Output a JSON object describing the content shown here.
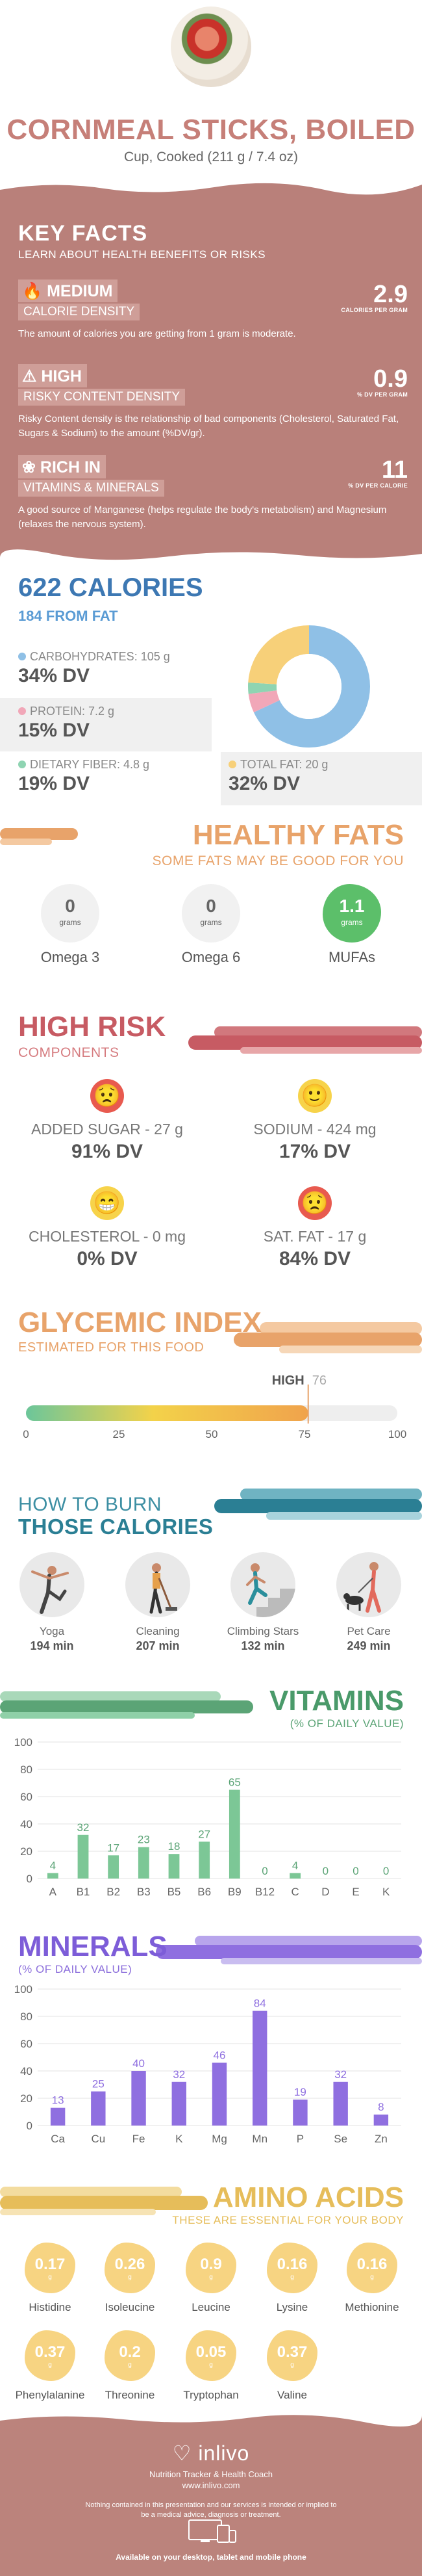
{
  "food": {
    "title": "CORNMEAL STICKS, BOILED",
    "serving": "Cup, Cooked (211 g / 7.4 oz)"
  },
  "key_facts": {
    "title": "KEY FACTS",
    "subtitle": "LEARN ABOUT HEALTH BENEFITS OR RISKS",
    "items": [
      {
        "level": "MEDIUM",
        "label": "CALORIE DENSITY",
        "icon": "flame-icon",
        "value": "2.9",
        "unit": "CALORIES PER GRAM",
        "description": "The amount of calories you are getting from 1 gram is moderate."
      },
      {
        "level": "HIGH",
        "label": "RISKY CONTENT DENSITY",
        "icon": "warning-icon",
        "value": "0.9",
        "unit": "% DV PER GRAM",
        "description": "Risky Content density is the relationship of bad components (Cholesterol, Saturated Fat, Sugars & Sodium) to the amount (%DV/gr)."
      },
      {
        "level": "RICH IN",
        "label": "VITAMINS & MINERALS",
        "icon": "leaf-icon",
        "value": "11",
        "unit": "% DV PER CALORIE",
        "description": "A good source of Manganese (helps regulate the body's metabolism) and Magnesium (relaxes the nervous system)."
      }
    ]
  },
  "calories": {
    "title": "622 CALORIES",
    "from_fat": "184 FROM FAT",
    "macros": [
      {
        "name": "CARBOHYDRATES: 105 g",
        "dv": "34% DV",
        "color": "#8fc0e6"
      },
      {
        "name": "PROTEIN: 7.2 g",
        "dv": "15% DV",
        "color": "#f1a7b8"
      },
      {
        "name": "DIETARY FIBER: 4.8 g",
        "dv": "19% DV",
        "color": "#8fd4b2"
      },
      {
        "name": "TOTAL FAT: 20 g",
        "dv": "32% DV",
        "color": "#f7d079"
      }
    ],
    "donut_data": {
      "type": "pie",
      "slices": [
        {
          "name": "carbohydrates",
          "value": 68,
          "color": "#8fc0e6"
        },
        {
          "name": "protein",
          "value": 5,
          "color": "#f1a7b8"
        },
        {
          "name": "fiber",
          "value": 3,
          "color": "#8fd4b2"
        },
        {
          "name": "fat",
          "value": 24,
          "color": "#f7d079"
        }
      ]
    }
  },
  "healthy_fats": {
    "title": "HEALTHY FATS",
    "subtitle": "SOME FATS MAY BE GOOD FOR YOU",
    "items": [
      {
        "value": "0",
        "unit": "grams",
        "name": "Omega 3",
        "highlight": false
      },
      {
        "value": "0",
        "unit": "grams",
        "name": "Omega 6",
        "highlight": false
      },
      {
        "value": "1.1",
        "unit": "grams",
        "name": "MUFAs",
        "highlight": true
      }
    ]
  },
  "high_risk": {
    "title": "HIGH RISK",
    "subtitle": "COMPONENTS",
    "items": [
      {
        "label": "ADDED SUGAR - 27 g",
        "dv": "91% DV",
        "mood": "sad-face-icon",
        "color": "#e85a4f"
      },
      {
        "label": "SODIUM - 424 mg",
        "dv": "17% DV",
        "mood": "smile-face-icon",
        "color": "#f7d34a"
      },
      {
        "label": "CHOLESTEROL - 0 mg",
        "dv": "0% DV",
        "mood": "happy-face-icon",
        "color": "#f7d34a"
      },
      {
        "label": "SAT. FAT - 17 g",
        "dv": "84% DV",
        "mood": "sad-face-icon",
        "color": "#e85a4f"
      }
    ]
  },
  "glycemic": {
    "title": "GLYCEMIC INDEX",
    "subtitle": "ESTIMATED FOR THIS FOOD",
    "level": "HIGH",
    "value": "76",
    "ticks": [
      "0",
      "25",
      "50",
      "75",
      "100"
    ],
    "fill_fraction": 0.76
  },
  "burn": {
    "title1": "HOW TO BURN",
    "title2": "THOSE CALORIES",
    "activities": [
      {
        "name": "Yoga",
        "minutes": "194 min",
        "icon": "yoga-icon"
      },
      {
        "name": "Cleaning",
        "minutes": "207 min",
        "icon": "cleaning-icon"
      },
      {
        "name": "Climbing Stars",
        "minutes": "132 min",
        "icon": "stairs-icon"
      },
      {
        "name": "Pet Care",
        "minutes": "249 min",
        "icon": "dog-walk-icon"
      }
    ]
  },
  "vitamins": {
    "title": "VITAMINS",
    "subtitle": "(% OF DAILY VALUE)",
    "chart_data": {
      "type": "bar",
      "categories": [
        "A",
        "B1",
        "B2",
        "B3",
        "B5",
        "B6",
        "B9",
        "B12",
        "C",
        "D",
        "E",
        "K"
      ],
      "values": [
        4,
        32,
        17,
        23,
        18,
        27,
        65,
        0,
        4,
        0,
        0,
        0
      ],
      "ylim": [
        0,
        100
      ],
      "yticks": [
        0,
        20,
        40,
        60,
        80,
        100
      ],
      "bar_color": "#7cc796",
      "label_color": "#5ba476"
    }
  },
  "minerals": {
    "title": "MINERALS",
    "subtitle": "(% OF DAILY VALUE)",
    "chart_data": {
      "type": "bar",
      "categories": [
        "Ca",
        "Cu",
        "Fe",
        "K",
        "Mg",
        "Mn",
        "P",
        "Se",
        "Zn"
      ],
      "values": [
        13,
        25,
        40,
        32,
        46,
        84,
        19,
        32,
        8
      ],
      "ylim": [
        0,
        100
      ],
      "yticks": [
        0,
        20,
        40,
        60,
        80,
        100
      ],
      "bar_color": "#8f6fe0",
      "label_color": "#8f6fe0"
    }
  },
  "amino": {
    "title": "AMINO ACIDS",
    "subtitle": "THESE ARE ESSENTIAL FOR YOUR BODY",
    "items": [
      {
        "value": "0.17",
        "unit": "g",
        "name": "Histidine"
      },
      {
        "value": "0.26",
        "unit": "g",
        "name": "Isoleucine"
      },
      {
        "value": "0.9",
        "unit": "g",
        "name": "Leucine"
      },
      {
        "value": "0.16",
        "unit": "g",
        "name": "Lysine"
      },
      {
        "value": "0.16",
        "unit": "g",
        "name": "Methionine"
      },
      {
        "value": "0.37",
        "unit": "g",
        "name": "Phenylalanine"
      },
      {
        "value": "0.2",
        "unit": "g",
        "name": "Threonine"
      },
      {
        "value": "0.05",
        "unit": "g",
        "name": "Tryptophan"
      },
      {
        "value": "0.37",
        "unit": "g",
        "name": "Valine"
      }
    ]
  },
  "footer": {
    "logo": "inlivo",
    "tagline": "Nutrition Tracker & Health Coach",
    "url": "www.inlivo.com",
    "disclaimer": "Nothing contained in this presentation and our services is intended or implied to be a medical advice, diagnosis or treatment.",
    "availability": "Available on your desktop, tablet and mobile phone"
  }
}
